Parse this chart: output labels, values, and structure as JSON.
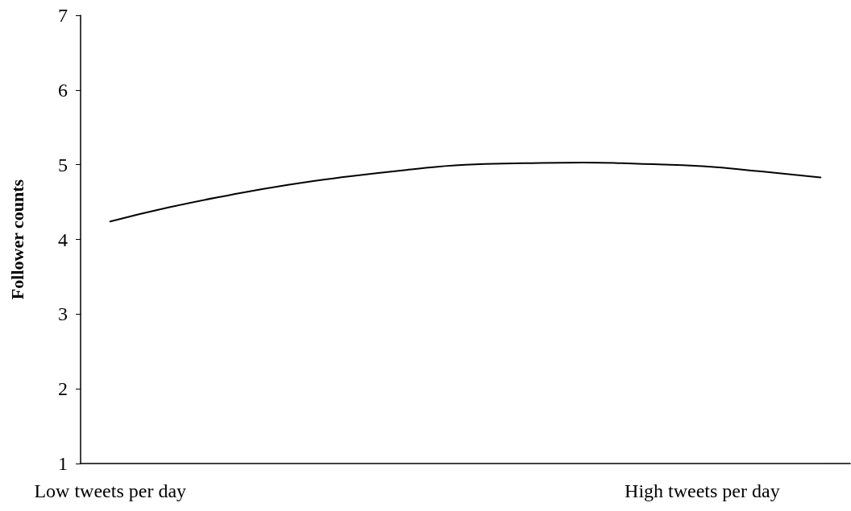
{
  "chart_data": {
    "type": "line",
    "ylabel": "Follower counts",
    "categories": [
      "Low tweets per day",
      null,
      null,
      null,
      null,
      null,
      null,
      null,
      null,
      null,
      "High tweets per day",
      null,
      null
    ],
    "series": [
      {
        "color": "#000000",
        "values": [
          4.24,
          4.43,
          4.59,
          4.73,
          4.84,
          4.93,
          5.0,
          5.02,
          5.03,
          5.01,
          4.98,
          4.91,
          4.83
        ]
      }
    ],
    "ylim": [
      1,
      7
    ],
    "yticks": [
      1,
      2,
      3,
      4,
      5,
      6,
      7
    ],
    "grid": false,
    "marker": "none",
    "line_style": "solid"
  }
}
